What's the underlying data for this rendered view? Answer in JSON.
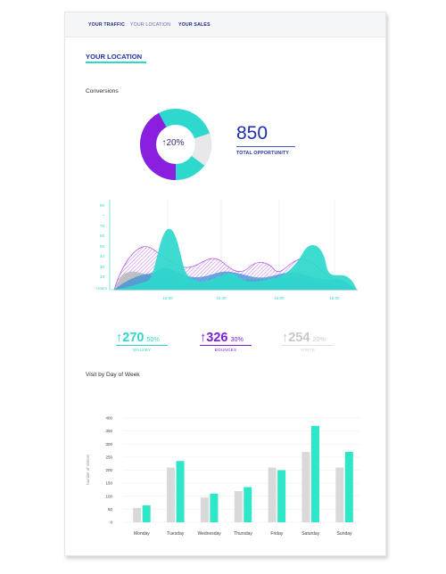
{
  "tabs": [
    {
      "label": "YOUR TRAFFIC"
    },
    {
      "label": "YOUR LOCATION"
    },
    {
      "label": "YOUR SALES"
    }
  ],
  "page_title": "YOUR LOCATION",
  "conversions": {
    "title": "Conversions",
    "donut_center": "↑20%",
    "donut_percent": 20,
    "total_value": "850",
    "total_label": "TOTAL OPPORTUNITY"
  },
  "area_chart": {
    "y_ticks": [
      "90",
      "70",
      "60",
      "50",
      "40",
      "30",
      "20",
      "10"
    ],
    "y_axis_label": "Users",
    "x_ticks": [
      "15:00",
      "15:30",
      "16:00",
      "16:30"
    ]
  },
  "stats": [
    {
      "value": "↑270",
      "percent": "50%",
      "label": "WALKBY",
      "color": "#2ed8cc"
    },
    {
      "value": "↑326",
      "percent": "30%",
      "label": "BOUNCES",
      "color": "#7a1fd6"
    },
    {
      "value": "↑254",
      "percent": "20%",
      "label": "VISITS",
      "color": "#c8c8cc"
    }
  ],
  "weekly": {
    "title": "Visit by Day of Week",
    "y_axis_label": "Number of Visitors",
    "y_ticks": [
      "400",
      "350",
      "300",
      "250",
      "200",
      "150",
      "100",
      "50",
      "0"
    ]
  },
  "chart_data": {
    "type": "bar",
    "categories": [
      "Monday",
      "Tuesday",
      "Wednesday",
      "Thursday",
      "Friday",
      "Saturday",
      "Sunday"
    ],
    "series": [
      {
        "values": [
          55,
          210,
          95,
          120,
          210,
          270,
          210
        ]
      },
      {
        "values": [
          65,
          235,
          110,
          135,
          200,
          370,
          270
        ]
      }
    ],
    "ylabel": "Number of Visitors",
    "ylim": [
      0,
      400
    ],
    "colors": [
      "#d9d9db",
      "#2ee6c8"
    ],
    "grid": true
  }
}
